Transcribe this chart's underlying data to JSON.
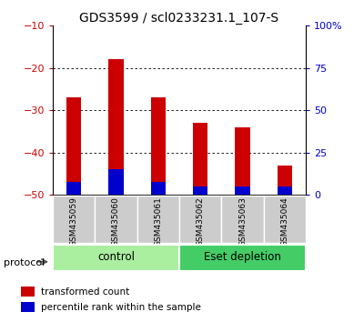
{
  "title": "GDS3599 / scl0233231.1_107-S",
  "samples": [
    "GSM435059",
    "GSM435060",
    "GSM435061",
    "GSM435062",
    "GSM435063",
    "GSM435064"
  ],
  "red_top": [
    -27,
    -18,
    -27,
    -33,
    -34,
    -43
  ],
  "blue_top": [
    -47,
    -44,
    -47,
    -48,
    -48,
    -48
  ],
  "bar_bottom": -50,
  "ylim": [
    -50,
    -10
  ],
  "yticks_left": [
    -10,
    -20,
    -30,
    -40,
    -50
  ],
  "yticks_right_vals": [
    -50,
    -40,
    -30,
    -20,
    -10
  ],
  "yticks_right_labels": [
    "0",
    "25",
    "50",
    "75",
    "100%"
  ],
  "red_color": "#cc0000",
  "blue_color": "#0000cc",
  "groups": [
    {
      "label": "control",
      "indices": [
        0,
        1,
        2
      ],
      "color": "#aaeea0"
    },
    {
      "label": "Eset depletion",
      "indices": [
        3,
        4,
        5
      ],
      "color": "#44cc66"
    }
  ],
  "protocol_label": "protocol",
  "legend_red": "transformed count",
  "legend_blue": "percentile rank within the sample",
  "bar_width": 0.35,
  "title_fontsize": 10,
  "tick_fontsize": 8,
  "label_fontsize": 8.5
}
